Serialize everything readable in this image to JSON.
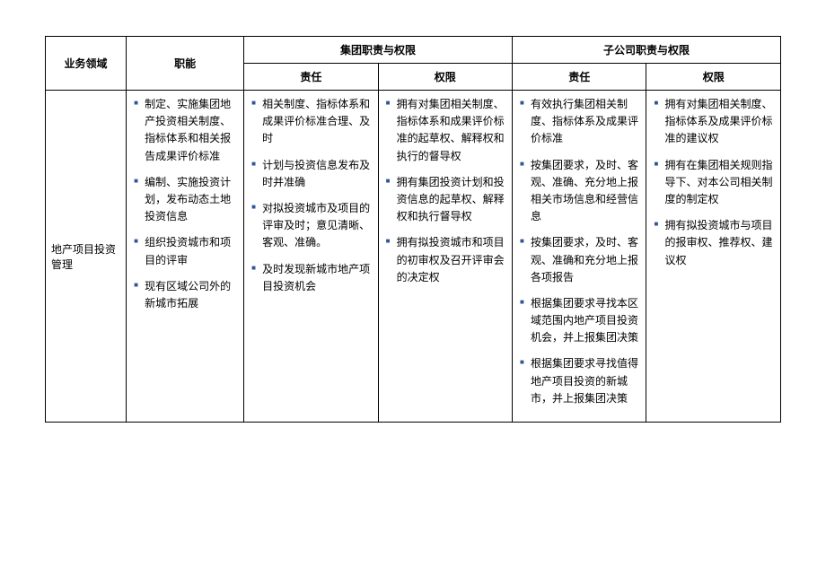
{
  "bullet_color": "#2f5597",
  "border_color": "#000000",
  "background_color": "#ffffff",
  "font_size_pt": 9,
  "headers": {
    "domain": "业务领域",
    "function": "职能",
    "group": "集团职责与权限",
    "subsidiary": "子公司职责与权限",
    "responsibility": "责任",
    "authority": "权限"
  },
  "row": {
    "domain_label": "地产项目投资管理",
    "function_items": [
      "制定、实施集团地产投资相关制度、指标体系和相关报告成果评价标准",
      "编制、实施投资计划，发布动态土地投资信息",
      "组织投资城市和项目的评审",
      "现有区域公司外的新城市拓展"
    ],
    "group_responsibility": [
      "相关制度、指标体系和成果评价标准合理、及时",
      "计划与投资信息发布及时并准确",
      "对拟投资城市及项目的评审及时；意见清晰、客观、准确。",
      "及时发现新城市地产项目投资机会"
    ],
    "group_authority": [
      "拥有对集团相关制度、指标体系和成果评价标准的起草权、解释权和执行的督导权",
      "拥有集团投资计划和投资信息的起草权、解释权和执行督导权",
      "拥有拟投资城市和项目的初审权及召开评审会的决定权"
    ],
    "sub_responsibility": [
      "有效执行集团相关制度、指标体系及成果评价标准",
      "按集团要求，及时、客观、准确、充分地上报相关市场信息和经营信息",
      "按集团要求，及时、客观、准确和充分地上报各项报告",
      "根据集团要求寻找本区域范围内地产项目投资机会，并上报集团决策",
      "根据集团要求寻找值得地产项目投资的新城市，并上报集团决策"
    ],
    "sub_authority": [
      "拥有对集团相关制度、指标体系及成果评价标准的建议权",
      "拥有在集团相关规则指导下、对本公司相关制度的制定权",
      "拥有拟投资城市与项目的报审权、推荐权、建议权"
    ]
  }
}
